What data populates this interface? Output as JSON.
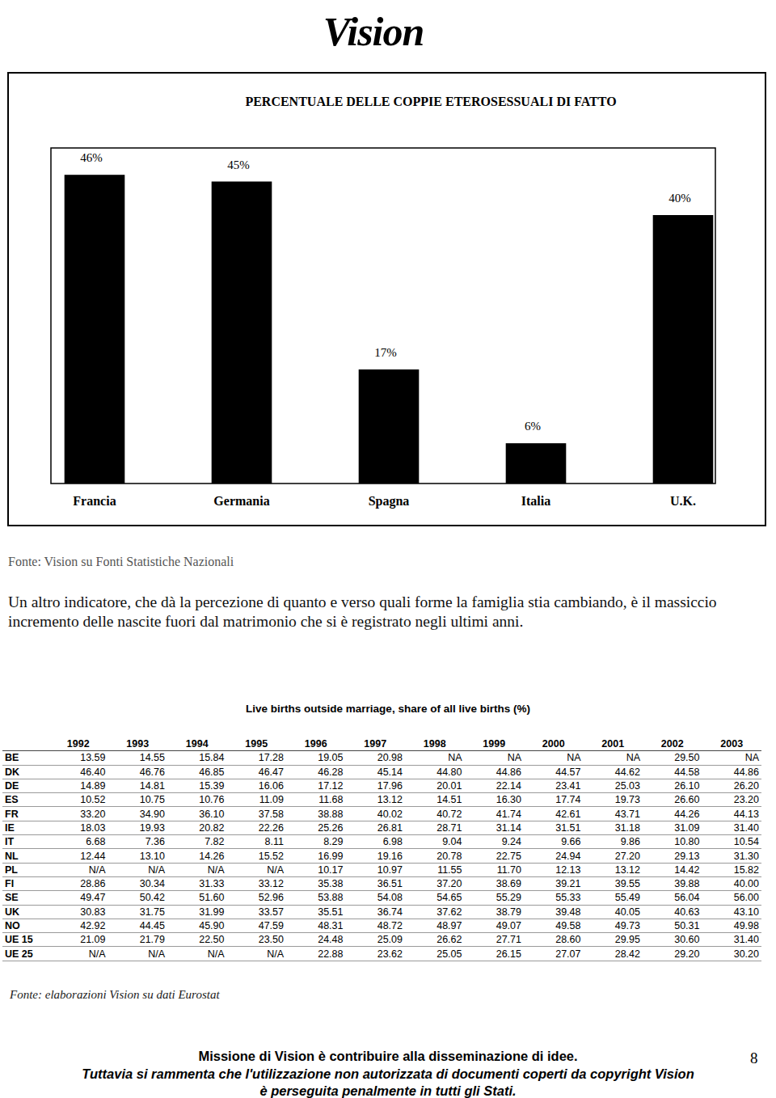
{
  "header": {
    "logo": "Vision"
  },
  "chart_data": {
    "type": "bar",
    "title": "PERCENTUALE DELLE COPPIE ETEROSESSUALI DI FATTO",
    "categories": [
      "Francia",
      "Germania",
      "Spagna",
      "Italia",
      "U.K."
    ],
    "values": [
      46,
      45,
      17,
      6,
      40
    ],
    "value_labels": [
      "46%",
      "45%",
      "17%",
      "6%",
      "40%"
    ],
    "color": "#000000",
    "ylim": [
      0,
      50
    ],
    "data_labels": true,
    "tick_labels": "x"
  },
  "source_chart": "Fonte: Vision su Fonti Statistiche Nazionali",
  "paragraph": "Un altro indicatore, che dà la percezione di quanto e verso quali forme la famiglia stia cambiando, è il massiccio incremento delle nascite fuori dal matrimonio che si è registrato negli ultimi anni.",
  "table": {
    "title": "Live births outside marriage, share of all live births (%)",
    "columns": [
      "1992",
      "1993",
      "1994",
      "1995",
      "1996",
      "1997",
      "1998",
      "1999",
      "2000",
      "2001",
      "2002",
      "2003"
    ],
    "rows": [
      {
        "label": "BE",
        "values": [
          "13.59",
          "14.55",
          "15.84",
          "17.28",
          "19.05",
          "20.98",
          "NA",
          "NA",
          "NA",
          "NA",
          "29.50",
          "NA"
        ]
      },
      {
        "label": "DK",
        "values": [
          "46.40",
          "46.76",
          "46.85",
          "46.47",
          "46.28",
          "45.14",
          "44.80",
          "44.86",
          "44.57",
          "44.62",
          "44.58",
          "44.86"
        ]
      },
      {
        "label": "DE",
        "values": [
          "14.89",
          "14.81",
          "15.39",
          "16.06",
          "17.12",
          "17.96",
          "20.01",
          "22.14",
          "23.41",
          "25.03",
          "26.10",
          "26.20"
        ]
      },
      {
        "label": "ES",
        "values": [
          "10.52",
          "10.75",
          "10.76",
          "11.09",
          "11.68",
          "13.12",
          "14.51",
          "16.30",
          "17.74",
          "19.73",
          "26.60",
          "23.20"
        ]
      },
      {
        "label": "FR",
        "values": [
          "33.20",
          "34.90",
          "36.10",
          "37.58",
          "38.88",
          "40.02",
          "40.72",
          "41.74",
          "42.61",
          "43.71",
          "44.26",
          "44.13"
        ]
      },
      {
        "label": "IE",
        "values": [
          "18.03",
          "19.93",
          "20.82",
          "22.26",
          "25.26",
          "26.81",
          "28.71",
          "31.14",
          "31.51",
          "31.18",
          "31.09",
          "31.40"
        ]
      },
      {
        "label": "IT",
        "values": [
          "6.68",
          "7.36",
          "7.82",
          "8.11",
          "8.29",
          "6.98",
          "9.04",
          "9.24",
          "9.66",
          "9.86",
          "10.80",
          "10.54"
        ]
      },
      {
        "label": "NL",
        "values": [
          "12.44",
          "13.10",
          "14.26",
          "15.52",
          "16.99",
          "19.16",
          "20.78",
          "22.75",
          "24.94",
          "27.20",
          "29.13",
          "31.30"
        ]
      },
      {
        "label": "PL",
        "values": [
          "N/A",
          "N/A",
          "N/A",
          "N/A",
          "10.17",
          "10.97",
          "11.55",
          "11.70",
          "12.13",
          "13.12",
          "14.42",
          "15.82"
        ]
      },
      {
        "label": "FI",
        "values": [
          "28.86",
          "30.34",
          "31.33",
          "33.12",
          "35.38",
          "36.51",
          "37.20",
          "38.69",
          "39.21",
          "39.55",
          "39.88",
          "40.00"
        ]
      },
      {
        "label": "SE",
        "values": [
          "49.47",
          "50.42",
          "51.60",
          "52.96",
          "53.88",
          "54.08",
          "54.65",
          "55.29",
          "55.33",
          "55.49",
          "56.04",
          "56.00"
        ]
      },
      {
        "label": "UK",
        "values": [
          "30.83",
          "31.75",
          "31.99",
          "33.57",
          "35.51",
          "36.74",
          "37.62",
          "38.79",
          "39.48",
          "40.05",
          "40.63",
          "43.10"
        ]
      },
      {
        "label": "NO",
        "values": [
          "42.92",
          "44.45",
          "45.90",
          "47.59",
          "48.31",
          "48.72",
          "48.97",
          "49.07",
          "49.58",
          "49.73",
          "50.31",
          "49.98"
        ]
      },
      {
        "label": "UE 15",
        "values": [
          "21.09",
          "21.79",
          "22.50",
          "23.50",
          "24.48",
          "25.09",
          "26.62",
          "27.71",
          "28.60",
          "29.95",
          "30.60",
          "31.40"
        ]
      },
      {
        "label": "UE 25",
        "values": [
          "N/A",
          "N/A",
          "N/A",
          "N/A",
          "22.88",
          "23.62",
          "25.05",
          "26.15",
          "27.07",
          "28.42",
          "29.20",
          "30.20"
        ]
      }
    ]
  },
  "source_table": "Fonte: elaborazioni Vision su dati Eurostat",
  "footer": {
    "lines": [
      "Missione di Vision è contribuire alla disseminazione di idee.",
      "Tuttavia si rammenta che l'utilizzazione non autorizzata di documenti coperti da copyright Vision",
      "è perseguita penalmente in tutti gli Stati."
    ],
    "page": "8"
  }
}
